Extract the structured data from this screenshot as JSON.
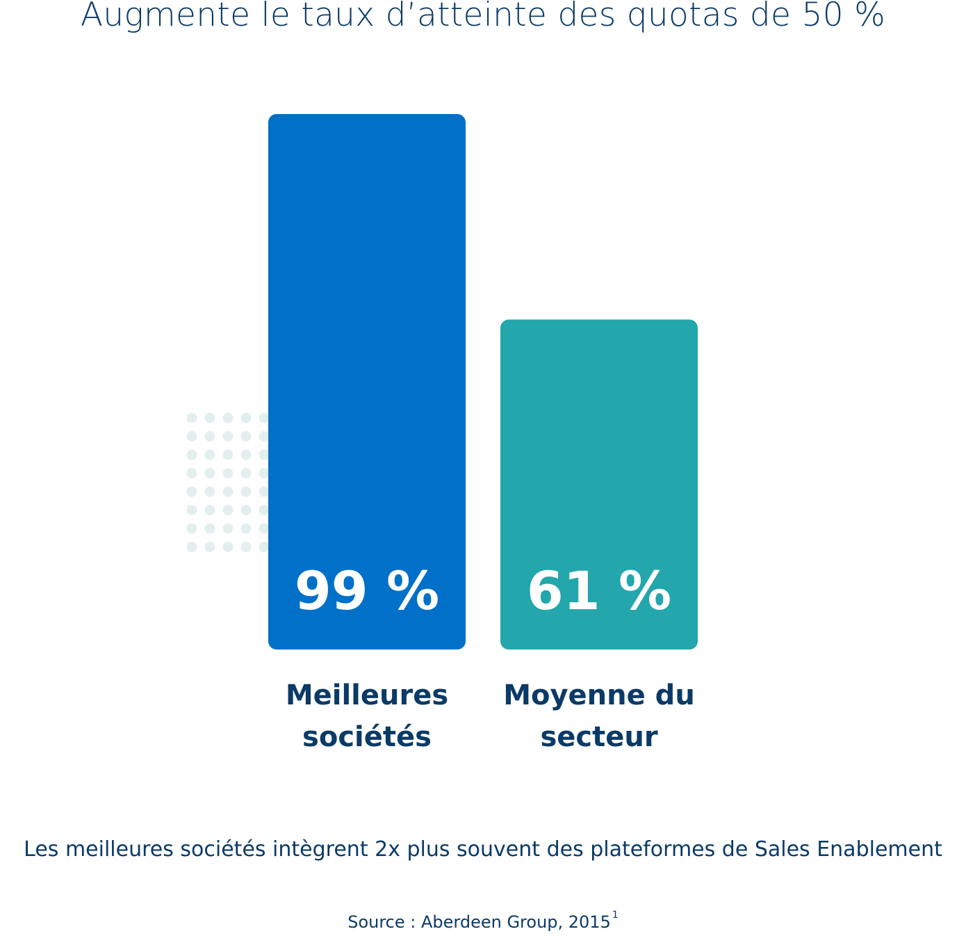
{
  "title": "Augmente le taux d’atteinte des quotas de 50 %",
  "chart_data": {
    "type": "bar",
    "categories": [
      "Meilleures sociétés",
      "Moyenne du secteur"
    ],
    "label_lines": [
      [
        "Meilleures",
        "sociétés"
      ],
      [
        "Moyenne du",
        "secteur"
      ]
    ],
    "values": [
      99,
      61
    ],
    "value_labels": [
      "99 %",
      "61 %"
    ],
    "colors": [
      "#0170c8",
      "#23a6ac"
    ],
    "unit": "%"
  },
  "caption": "Les meilleures sociétés intègrent 2x plus souvent des plateformes de Sales Enablement",
  "source": {
    "text": "Source : Aberdeen Group, 2015",
    "footnote": "1"
  },
  "colors": {
    "text": "#0b3a66",
    "dots": "#e3efee"
  }
}
